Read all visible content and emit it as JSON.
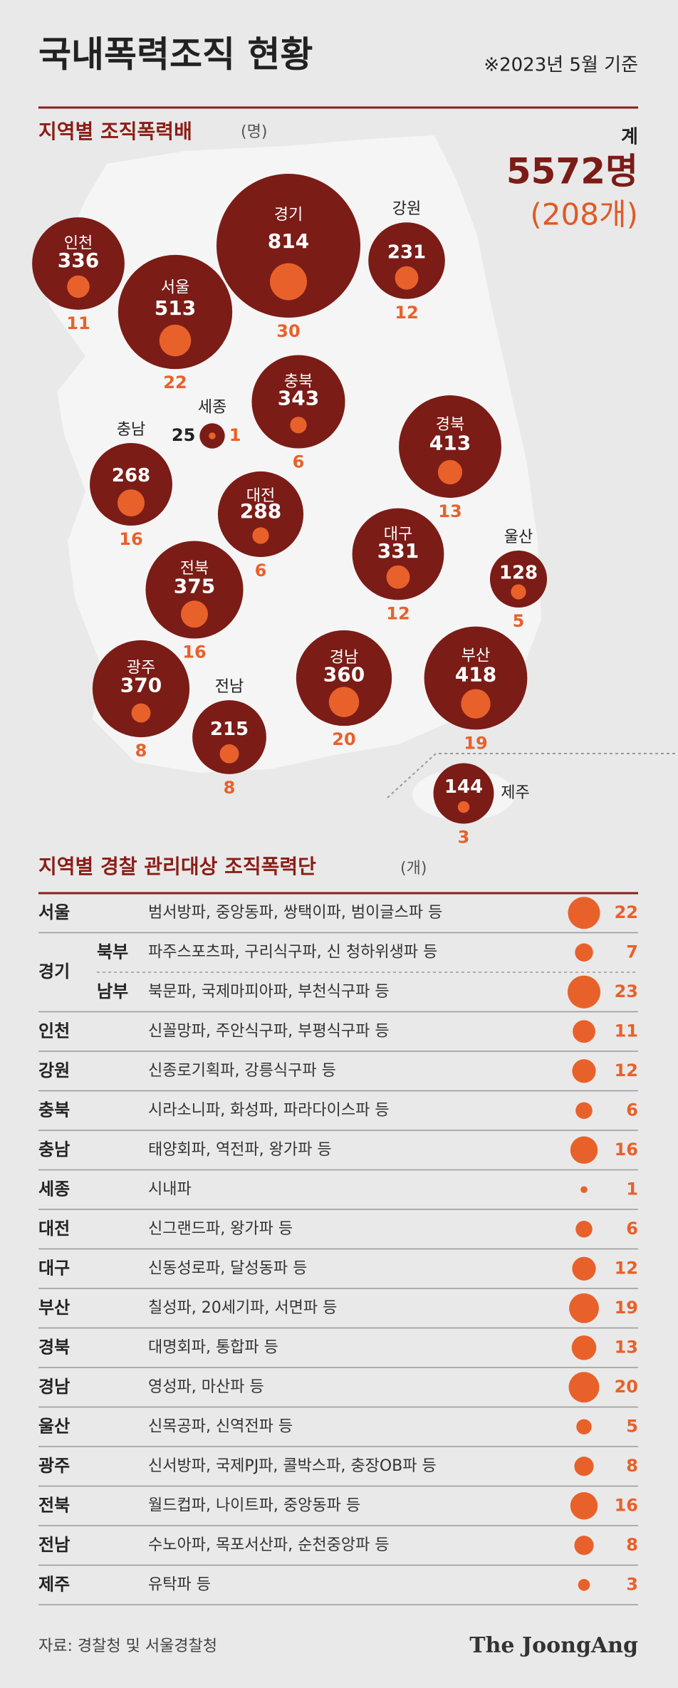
{
  "header": {
    "title": "국내폭력조직 현황",
    "note": "※2023년 5월 기준"
  },
  "chart_data": {
    "type": "bubble",
    "title": "지역별 조직폭력배",
    "unit": "(명)",
    "total_label": "계",
    "total": "5572명",
    "total_orgs": "(208개)",
    "categories": [
      "인천",
      "서울",
      "경기",
      "강원",
      "충북",
      "세종",
      "충남",
      "경북",
      "대전",
      "대구",
      "울산",
      "전북",
      "광주",
      "경남",
      "부산",
      "전남",
      "제주"
    ],
    "series": [
      {
        "color": "#7b1c17",
        "values": [
          336,
          513,
          814,
          231,
          343,
          25,
          268,
          413,
          288,
          331,
          128,
          375,
          370,
          360,
          418,
          215,
          144
        ]
      },
      {
        "color": "#e8612b",
        "values": [
          11,
          22,
          30,
          12,
          6,
          1,
          16,
          13,
          6,
          12,
          5,
          16,
          8,
          20,
          19,
          8,
          3
        ]
      }
    ]
  },
  "table": {
    "title": "지역별 경찰 관리대상 조직폭력단",
    "unit": "(개)",
    "color": "#e8612b",
    "rows": [
      {
        "region": "서울",
        "groups": "범서방파, 중앙동파, 쌍택이파, 범이글스파 등",
        "count": 22
      },
      {
        "region": "경기",
        "sub": [
          {
            "name": "북부",
            "groups": "파주스포츠파, 구리식구파, 신 청하위생파 등",
            "count": 7
          },
          {
            "name": "남부",
            "groups": "북문파, 국제마피아파, 부천식구파 등",
            "count": 23
          }
        ]
      },
      {
        "region": "인천",
        "groups": "신꼴망파, 주안식구파, 부평식구파 등",
        "count": 11
      },
      {
        "region": "강원",
        "groups": "신종로기획파, 강릉식구파 등",
        "count": 12
      },
      {
        "region": "충북",
        "groups": "시라소니파, 화성파, 파라다이스파 등",
        "count": 6
      },
      {
        "region": "충남",
        "groups": "태양회파, 역전파, 왕가파 등",
        "count": 16
      },
      {
        "region": "세종",
        "groups": "시내파",
        "count": 1
      },
      {
        "region": "대전",
        "groups": "신그랜드파, 왕가파 등",
        "count": 6
      },
      {
        "region": "대구",
        "groups": "신동성로파, 달성동파 등",
        "count": 12
      },
      {
        "region": "부산",
        "groups": "칠성파, 20세기파, 서면파 등",
        "count": 19
      },
      {
        "region": "경북",
        "groups": "대명회파, 통합파 등",
        "count": 13
      },
      {
        "region": "경남",
        "groups": "영성파, 마산파 등",
        "count": 20
      },
      {
        "region": "울산",
        "groups": "신목공파, 신역전파 등",
        "count": 5
      },
      {
        "region": "광주",
        "groups": "신서방파, 국제PJ파, 콜박스파, 충장OB파 등",
        "count": 8
      },
      {
        "region": "전북",
        "groups": "월드컵파, 나이트파, 중앙동파 등",
        "count": 16
      },
      {
        "region": "전남",
        "groups": "수노아파, 목포서산파, 순천중앙파 등",
        "count": 8
      },
      {
        "region": "제주",
        "groups": "유탁파 등",
        "count": 3
      }
    ]
  },
  "footer": {
    "source": "자료: 경찰청 및 서울경찰청",
    "brand": "The JoongAng"
  }
}
